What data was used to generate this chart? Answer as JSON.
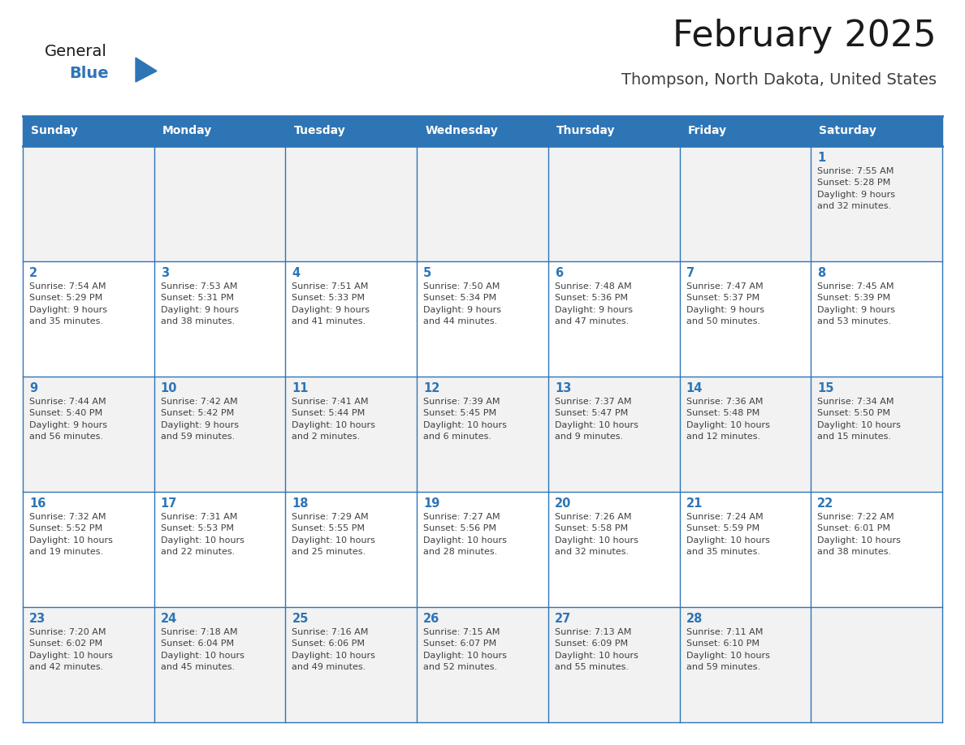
{
  "title": "February 2025",
  "subtitle": "Thompson, North Dakota, United States",
  "header_bg": "#2E75B6",
  "header_text_color": "#FFFFFF",
  "row_bg_even": "#F2F2F2",
  "row_bg_odd": "#FFFFFF",
  "day_number_color": "#2E75B6",
  "text_color": "#404040",
  "line_color": "#2E75B6",
  "logo_general_color": "#1a1a1a",
  "logo_blue_color": "#2E75B6",
  "logo_triangle_color": "#2E75B6",
  "title_color": "#1a1a1a",
  "subtitle_color": "#404040",
  "days_of_week": [
    "Sunday",
    "Monday",
    "Tuesday",
    "Wednesday",
    "Thursday",
    "Friday",
    "Saturday"
  ],
  "weeks": [
    [
      {
        "day": 0,
        "data": null
      },
      {
        "day": 0,
        "data": null
      },
      {
        "day": 0,
        "data": null
      },
      {
        "day": 0,
        "data": null
      },
      {
        "day": 0,
        "data": null
      },
      {
        "day": 0,
        "data": null
      },
      {
        "day": 1,
        "data": "Sunrise: 7:55 AM\nSunset: 5:28 PM\nDaylight: 9 hours\nand 32 minutes."
      }
    ],
    [
      {
        "day": 2,
        "data": "Sunrise: 7:54 AM\nSunset: 5:29 PM\nDaylight: 9 hours\nand 35 minutes."
      },
      {
        "day": 3,
        "data": "Sunrise: 7:53 AM\nSunset: 5:31 PM\nDaylight: 9 hours\nand 38 minutes."
      },
      {
        "day": 4,
        "data": "Sunrise: 7:51 AM\nSunset: 5:33 PM\nDaylight: 9 hours\nand 41 minutes."
      },
      {
        "day": 5,
        "data": "Sunrise: 7:50 AM\nSunset: 5:34 PM\nDaylight: 9 hours\nand 44 minutes."
      },
      {
        "day": 6,
        "data": "Sunrise: 7:48 AM\nSunset: 5:36 PM\nDaylight: 9 hours\nand 47 minutes."
      },
      {
        "day": 7,
        "data": "Sunrise: 7:47 AM\nSunset: 5:37 PM\nDaylight: 9 hours\nand 50 minutes."
      },
      {
        "day": 8,
        "data": "Sunrise: 7:45 AM\nSunset: 5:39 PM\nDaylight: 9 hours\nand 53 minutes."
      }
    ],
    [
      {
        "day": 9,
        "data": "Sunrise: 7:44 AM\nSunset: 5:40 PM\nDaylight: 9 hours\nand 56 minutes."
      },
      {
        "day": 10,
        "data": "Sunrise: 7:42 AM\nSunset: 5:42 PM\nDaylight: 9 hours\nand 59 minutes."
      },
      {
        "day": 11,
        "data": "Sunrise: 7:41 AM\nSunset: 5:44 PM\nDaylight: 10 hours\nand 2 minutes."
      },
      {
        "day": 12,
        "data": "Sunrise: 7:39 AM\nSunset: 5:45 PM\nDaylight: 10 hours\nand 6 minutes."
      },
      {
        "day": 13,
        "data": "Sunrise: 7:37 AM\nSunset: 5:47 PM\nDaylight: 10 hours\nand 9 minutes."
      },
      {
        "day": 14,
        "data": "Sunrise: 7:36 AM\nSunset: 5:48 PM\nDaylight: 10 hours\nand 12 minutes."
      },
      {
        "day": 15,
        "data": "Sunrise: 7:34 AM\nSunset: 5:50 PM\nDaylight: 10 hours\nand 15 minutes."
      }
    ],
    [
      {
        "day": 16,
        "data": "Sunrise: 7:32 AM\nSunset: 5:52 PM\nDaylight: 10 hours\nand 19 minutes."
      },
      {
        "day": 17,
        "data": "Sunrise: 7:31 AM\nSunset: 5:53 PM\nDaylight: 10 hours\nand 22 minutes."
      },
      {
        "day": 18,
        "data": "Sunrise: 7:29 AM\nSunset: 5:55 PM\nDaylight: 10 hours\nand 25 minutes."
      },
      {
        "day": 19,
        "data": "Sunrise: 7:27 AM\nSunset: 5:56 PM\nDaylight: 10 hours\nand 28 minutes."
      },
      {
        "day": 20,
        "data": "Sunrise: 7:26 AM\nSunset: 5:58 PM\nDaylight: 10 hours\nand 32 minutes."
      },
      {
        "day": 21,
        "data": "Sunrise: 7:24 AM\nSunset: 5:59 PM\nDaylight: 10 hours\nand 35 minutes."
      },
      {
        "day": 22,
        "data": "Sunrise: 7:22 AM\nSunset: 6:01 PM\nDaylight: 10 hours\nand 38 minutes."
      }
    ],
    [
      {
        "day": 23,
        "data": "Sunrise: 7:20 AM\nSunset: 6:02 PM\nDaylight: 10 hours\nand 42 minutes."
      },
      {
        "day": 24,
        "data": "Sunrise: 7:18 AM\nSunset: 6:04 PM\nDaylight: 10 hours\nand 45 minutes."
      },
      {
        "day": 25,
        "data": "Sunrise: 7:16 AM\nSunset: 6:06 PM\nDaylight: 10 hours\nand 49 minutes."
      },
      {
        "day": 26,
        "data": "Sunrise: 7:15 AM\nSunset: 6:07 PM\nDaylight: 10 hours\nand 52 minutes."
      },
      {
        "day": 27,
        "data": "Sunrise: 7:13 AM\nSunset: 6:09 PM\nDaylight: 10 hours\nand 55 minutes."
      },
      {
        "day": 28,
        "data": "Sunrise: 7:11 AM\nSunset: 6:10 PM\nDaylight: 10 hours\nand 59 minutes."
      },
      {
        "day": 0,
        "data": null
      }
    ]
  ]
}
